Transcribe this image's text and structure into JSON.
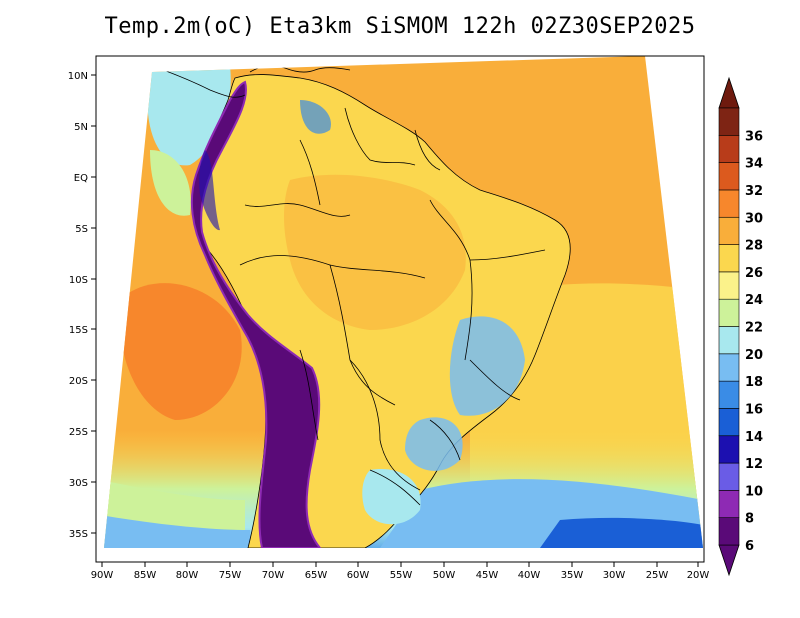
{
  "title": "Temp.2m(oC) Eta3km SiSMOM 122h 02Z30SEP2025",
  "lat_labels": [
    "10N",
    "5N",
    "EQ",
    "5S",
    "10S",
    "15S",
    "20S",
    "25S",
    "30S",
    "35S"
  ],
  "lon_labels": [
    "90W",
    "85W",
    "80W",
    "75W",
    "70W",
    "65W",
    "60W",
    "55W",
    "50W",
    "45W",
    "40W",
    "35W",
    "30W",
    "25W",
    "20W"
  ],
  "colorbar": {
    "labels": [
      "6",
      "8",
      "10",
      "12",
      "14",
      "16",
      "18",
      "20",
      "22",
      "24",
      "26",
      "28",
      "30",
      "32",
      "34",
      "36"
    ],
    "colors": [
      "#5a0a78",
      "#8e2ab4",
      "#6a5ce6",
      "#1c10b0",
      "#1a5fd6",
      "#3a8ce6",
      "#78bdf2",
      "#a8e8ee",
      "#cdf29a",
      "#fbf28a",
      "#fbd74e",
      "#f9ae3a",
      "#f7872c",
      "#dc5a1e",
      "#b83c1a",
      "#7e2414"
    ],
    "under_color": "#5a0a78",
    "over_color": "#6e1a0e"
  },
  "colors": {
    "ocean": "#f9ae3a",
    "land": "#fbd74e",
    "andes": "#5a0a78",
    "south_ocean": "#78bdf2"
  }
}
